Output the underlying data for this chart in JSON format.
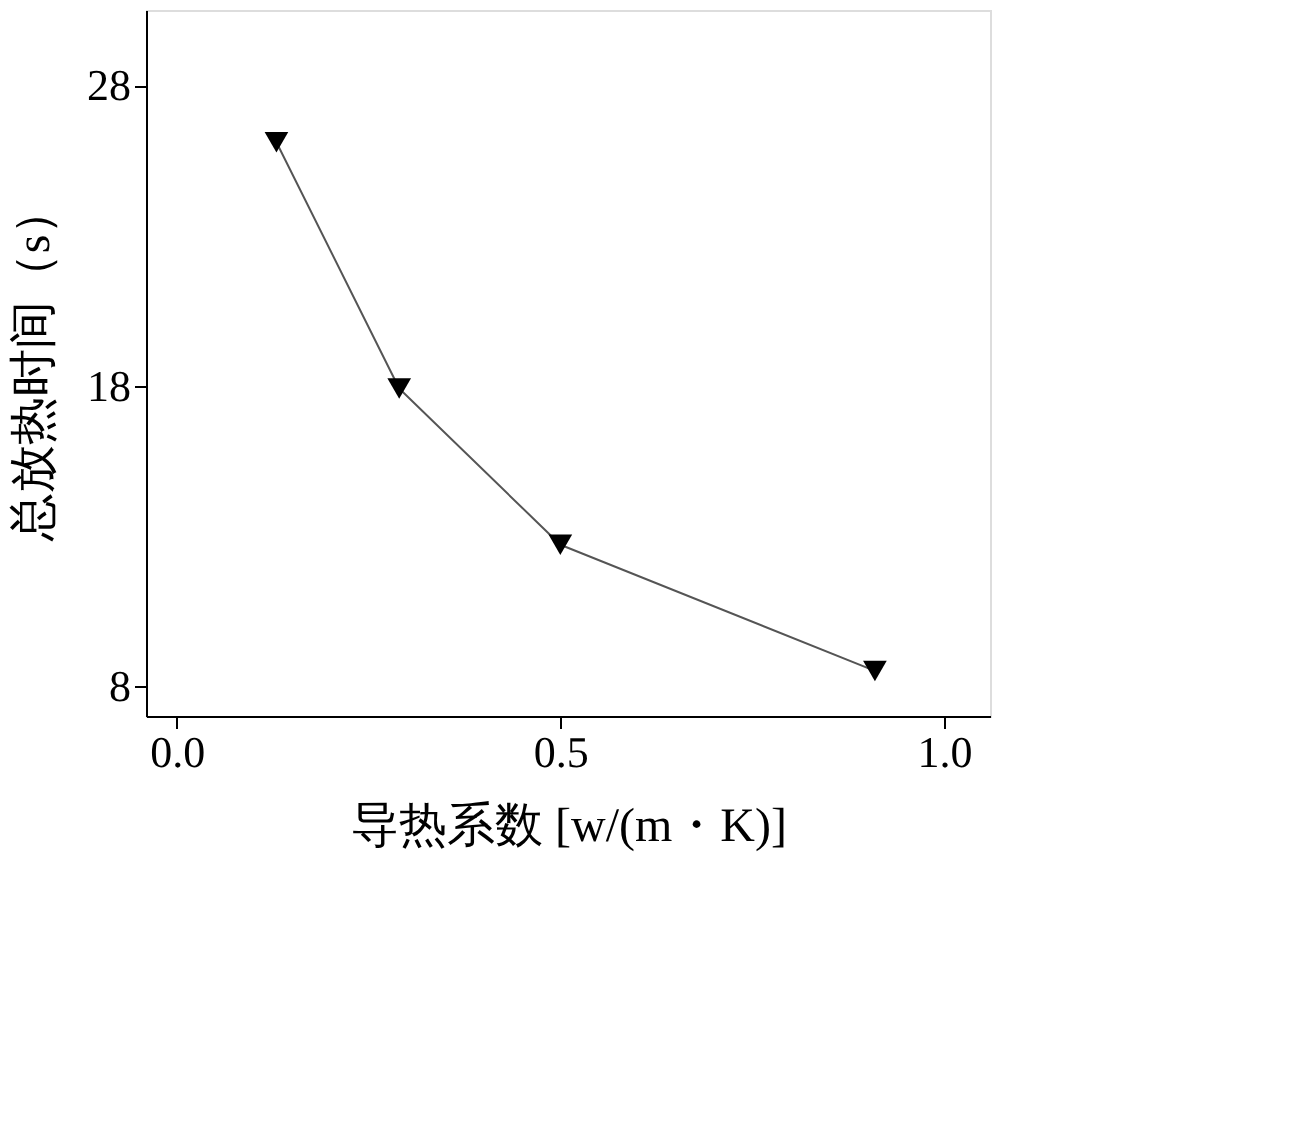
{
  "chart_data": {
    "type": "line",
    "xlabel": "导热系数 [w/(m・K)]",
    "ylabel": "总放热时间（s）",
    "x": [
      0.13,
      0.29,
      0.5,
      0.91
    ],
    "series": [
      {
        "color": "#000000",
        "values": [
          26.1,
          17.9,
          12.7,
          8.5
        ]
      }
    ],
    "xlim": [
      -0.04,
      1.06
    ],
    "xticks": [
      {
        "value": 0,
        "label": "0.0"
      },
      0.5,
      {
        "value": 1,
        "label": "1.0"
      }
    ],
    "ylim": [
      7,
      30.5
    ],
    "yticks": [
      8,
      18,
      28
    ],
    "marker": "triangle",
    "line_style": "solid",
    "grid": false
  }
}
